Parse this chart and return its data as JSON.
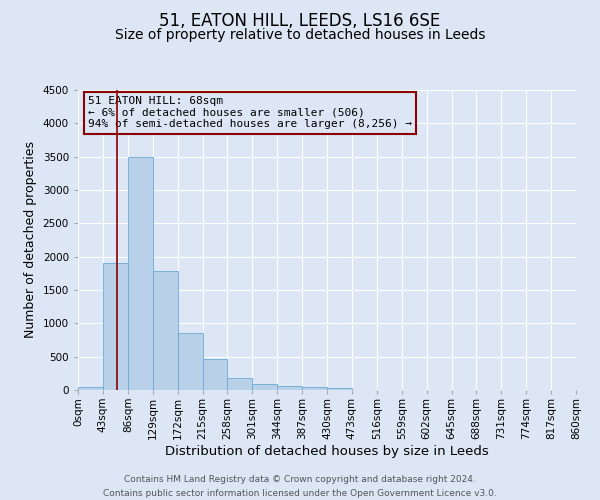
{
  "title": "51, EATON HILL, LEEDS, LS16 6SE",
  "subtitle": "Size of property relative to detached houses in Leeds",
  "xlabel": "Distribution of detached houses by size in Leeds",
  "ylabel": "Number of detached properties",
  "bin_edges": [
    0,
    43,
    86,
    129,
    172,
    215,
    258,
    301,
    344,
    387,
    430,
    473,
    516,
    559,
    602,
    645,
    688,
    731,
    774,
    817,
    860
  ],
  "bar_heights": [
    40,
    1900,
    3500,
    1780,
    860,
    460,
    175,
    85,
    55,
    40,
    30,
    0,
    0,
    0,
    0,
    0,
    0,
    0,
    0,
    0
  ],
  "bar_color": "#b8d0e8",
  "bar_edge_color": "#6aaad4",
  "background_color": "#dce6f5",
  "grid_color": "#ffffff",
  "vline_x": 68,
  "vline_color": "#8b0000",
  "annotation_text": "51 EATON HILL: 68sqm\n← 6% of detached houses are smaller (506)\n94% of semi-detached houses are larger (8,256) →",
  "annotation_box_edgecolor": "#8b0000",
  "ylim": [
    0,
    4500
  ],
  "yticks": [
    0,
    500,
    1000,
    1500,
    2000,
    2500,
    3000,
    3500,
    4000,
    4500
  ],
  "footer_line1": "Contains HM Land Registry data © Crown copyright and database right 2024.",
  "footer_line2": "Contains public sector information licensed under the Open Government Licence v3.0.",
  "title_fontsize": 12,
  "subtitle_fontsize": 10,
  "xlabel_fontsize": 9.5,
  "ylabel_fontsize": 9,
  "tick_labelsize": 7.5,
  "annot_fontsize": 8,
  "footer_fontsize": 6.5
}
